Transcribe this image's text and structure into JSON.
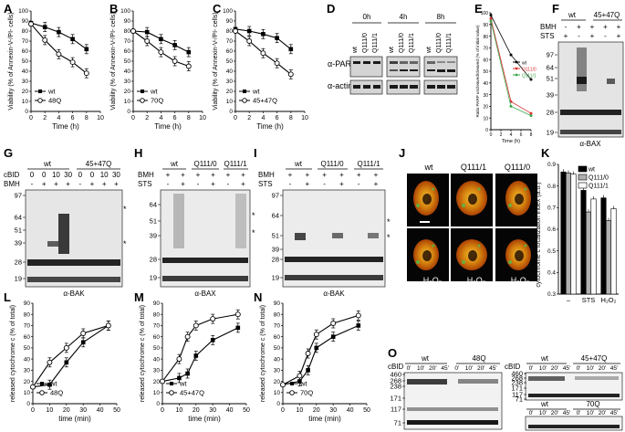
{
  "panel_labels": [
    "A",
    "B",
    "C",
    "D",
    "E",
    "F",
    "G",
    "H",
    "I",
    "J",
    "K",
    "L",
    "M",
    "N",
    "O"
  ],
  "chart_data": [
    {
      "id": "A",
      "type": "line",
      "title": "",
      "xlabel": "Time (h)",
      "ylabel": "Viability (% of Annexin-V-/PI- cells)",
      "xlim": [
        0,
        10
      ],
      "ylim": [
        0,
        100
      ],
      "xticks": [
        "0",
        "2",
        "4",
        "6",
        "8",
        "10"
      ],
      "yticks": [
        "0",
        "10",
        "20",
        "30",
        "40",
        "50",
        "60",
        "70",
        "80",
        "90",
        "100"
      ],
      "x": [
        0,
        2,
        4,
        6,
        8
      ],
      "series": [
        {
          "name": "wt",
          "marker": "filled",
          "values": [
            88,
            84,
            79,
            72,
            62
          ]
        },
        {
          "name": "48Q",
          "marker": "open",
          "values": [
            87,
            71,
            57,
            49,
            38
          ]
        }
      ]
    },
    {
      "id": "B",
      "type": "line",
      "xlabel": "Time (h)",
      "ylabel": "Viability (% of Annexin-V-/PI- cells)",
      "xlim": [
        0,
        10
      ],
      "ylim": [
        0,
        100
      ],
      "xticks": [
        "0",
        "2",
        "4",
        "6",
        "8",
        "10"
      ],
      "yticks": [
        "0",
        "10",
        "20",
        "30",
        "40",
        "50",
        "60",
        "70",
        "80",
        "90",
        "100"
      ],
      "x": [
        0,
        2,
        4,
        6,
        8
      ],
      "series": [
        {
          "name": "wt",
          "marker": "filled",
          "values": [
            80,
            79,
            72,
            66,
            59
          ]
        },
        {
          "name": "70Q",
          "marker": "open",
          "values": [
            80,
            70,
            59,
            50,
            45
          ]
        }
      ]
    },
    {
      "id": "C",
      "type": "line",
      "xlabel": "Time (h)",
      "ylabel": "Viability (% of Annexin-V-/PI- cells)",
      "xlim": [
        0,
        10
      ],
      "ylim": [
        0,
        100
      ],
      "xticks": [
        "0",
        "2",
        "4",
        "6",
        "8",
        "10"
      ],
      "yticks": [
        "0",
        "10",
        "20",
        "30",
        "40",
        "50",
        "60",
        "70",
        "80",
        "90",
        "100"
      ],
      "x": [
        0,
        2,
        4,
        6,
        8
      ],
      "series": [
        {
          "name": "wt",
          "marker": "filled",
          "values": [
            82,
            80,
            77,
            73,
            62
          ]
        },
        {
          "name": "45+47Q",
          "marker": "open",
          "values": [
            80,
            70,
            58,
            48,
            37
          ]
        }
      ]
    },
    {
      "id": "E",
      "type": "line",
      "xlabel": "Time (h)",
      "ylabel": "Ratio PARP uncleaved/cleaved (% of initial value)",
      "xlim": [
        0,
        8
      ],
      "ylim": [
        0,
        100
      ],
      "xticks": [
        "0",
        "2",
        "4",
        "6",
        "8"
      ],
      "yticks": [
        "0",
        "10",
        "20",
        "30",
        "40",
        "50",
        "60",
        "70",
        "80",
        "90",
        "100"
      ],
      "x": [
        0,
        4,
        8
      ],
      "series": [
        {
          "name": "wt",
          "color": "#000000",
          "values": [
            98,
            64,
            43
          ]
        },
        {
          "name": "Q111/0",
          "color": "#e03030",
          "values": [
            95,
            24,
            14
          ]
        },
        {
          "name": "Q111/1",
          "color": "#3aa84a",
          "values": [
            93,
            20,
            12
          ]
        }
      ]
    },
    {
      "id": "K",
      "type": "bar",
      "xlabel": "",
      "ylabel": "cytochrome c localization index (a.u.)",
      "ylim": [
        0.3,
        0.9
      ],
      "yticks": [
        "0.3",
        "0.4",
        "0.5",
        "0.6",
        "0.7",
        "0.8",
        "0.9"
      ],
      "categories": [
        "–",
        "STS",
        "H2O2"
      ],
      "series": [
        {
          "name": "wt",
          "color": "#000000",
          "values": [
            0.865,
            0.78,
            0.745
          ]
        },
        {
          "name": "Q111/0",
          "color": "#b0b0b0",
          "values": [
            0.86,
            0.68,
            0.64
          ]
        },
        {
          "name": "Q111/1",
          "color": "#ffffff",
          "values": [
            0.855,
            0.74,
            0.695
          ]
        }
      ]
    },
    {
      "id": "L",
      "type": "line",
      "xlabel": "time (min)",
      "ylabel": "released cytochrome c (% of total)",
      "xlim": [
        0,
        50
      ],
      "ylim": [
        0,
        90
      ],
      "xticks": [
        "0",
        "10",
        "20",
        "30",
        "40",
        "50"
      ],
      "yticks": [
        "0",
        "10",
        "20",
        "30",
        "40",
        "50",
        "60",
        "70",
        "80",
        "90"
      ],
      "x": [
        0,
        10,
        20,
        30,
        45
      ],
      "series": [
        {
          "name": "wt",
          "marker": "filled",
          "values": [
            15,
            17,
            37,
            55,
            70
          ]
        },
        {
          "name": "48Q",
          "marker": "open",
          "values": [
            15,
            37,
            50,
            63,
            70
          ]
        }
      ]
    },
    {
      "id": "M",
      "type": "line",
      "xlabel": "time (min)",
      "ylabel": "released cytochrome c (% of total)",
      "xlim": [
        0,
        50
      ],
      "ylim": [
        0,
        90
      ],
      "xticks": [
        "0",
        "10",
        "20",
        "30",
        "40",
        "50"
      ],
      "yticks": [
        "0",
        "10",
        "20",
        "30",
        "40",
        "50",
        "60",
        "70",
        "80",
        "90"
      ],
      "x": [
        0,
        10,
        15,
        20,
        30,
        45
      ],
      "series": [
        {
          "name": "wt",
          "marker": "filled",
          "values": [
            20,
            23,
            27,
            43,
            57,
            68
          ]
        },
        {
          "name": "45+47Q",
          "marker": "open",
          "values": [
            20,
            40,
            60,
            70,
            76,
            80
          ]
        }
      ]
    },
    {
      "id": "N",
      "type": "line",
      "xlabel": "time (min)",
      "ylabel": "released cytochrome c (% of total)",
      "xlim": [
        0,
        50
      ],
      "ylim": [
        0,
        90
      ],
      "xticks": [
        "0",
        "10",
        "20",
        "30",
        "40",
        "50"
      ],
      "yticks": [
        "0",
        "10",
        "20",
        "30",
        "40",
        "50",
        "60",
        "70",
        "80",
        "90"
      ],
      "x": [
        0,
        10,
        15,
        20,
        30,
        45
      ],
      "series": [
        {
          "name": "wt",
          "marker": "filled",
          "values": [
            17,
            20,
            30,
            50,
            60,
            70
          ]
        },
        {
          "name": "70Q",
          "marker": "open",
          "values": [
            17,
            25,
            45,
            62,
            72,
            79
          ]
        }
      ]
    }
  ],
  "blots": {
    "D": {
      "times": [
        "0h",
        "4h",
        "8h"
      ],
      "lanes": [
        "wt",
        "Q111/0",
        "Q111/1"
      ],
      "rows": [
        "α-PARP",
        "α-actin"
      ]
    },
    "F": {
      "groups": [
        "wt",
        "45+47Q"
      ],
      "treat_rows": [
        "BMH",
        "STS"
      ],
      "bmh": [
        "-",
        "+",
        "+",
        "+",
        "+"
      ],
      "sts": [
        "+",
        "-",
        "+",
        "-",
        "+"
      ],
      "mw": [
        "97",
        "64",
        "51",
        "39",
        "28",
        "19"
      ],
      "antibody": "α-BAX"
    },
    "G": {
      "groups": [
        "wt",
        "45+47Q"
      ],
      "row1_label": "cBID",
      "row2_label": "BMH",
      "cbid": [
        "0",
        "0",
        "10",
        "30",
        "0",
        "0",
        "10",
        "30"
      ],
      "bmh": [
        "-",
        "+",
        "+",
        "+",
        "-",
        "+",
        "+",
        "+"
      ],
      "mw": [
        "97",
        "64",
        "51",
        "39",
        "28",
        "19"
      ],
      "antibody": "α-BAK",
      "star": "*"
    },
    "H": {
      "groups": [
        "wt",
        "Q111/0",
        "Q111/1"
      ],
      "treat_rows": [
        "BMH",
        "STS"
      ],
      "mw": [
        "64",
        "51",
        "39",
        "28",
        "19"
      ],
      "antibody": "α-BAX",
      "star": "*"
    },
    "I": {
      "groups": [
        "wt",
        "Q111/0",
        "Q111/1"
      ],
      "treat_rows": [
        "BMH",
        "STS"
      ],
      "mw": [
        "97",
        "64",
        "51",
        "39",
        "28",
        "19"
      ],
      "antibody": "α-BAK",
      "star": "*"
    },
    "O": {
      "row1_label": "cBID",
      "times": [
        "0'",
        "10'",
        "20'",
        "45'"
      ],
      "groups_top": [
        "wt",
        "48Q"
      ],
      "groups_right_top": [
        "wt",
        "45+47Q"
      ],
      "groups_right_bottom": [
        "wt",
        "70Q"
      ],
      "mw": [
        "460",
        "268",
        "238",
        "171",
        "117",
        "71"
      ]
    }
  },
  "micrographs": {
    "columns": [
      "wt",
      "Q111/1",
      "Q111/0"
    ],
    "treatment": "H2O2",
    "treatment_text": "H₂O₂"
  }
}
